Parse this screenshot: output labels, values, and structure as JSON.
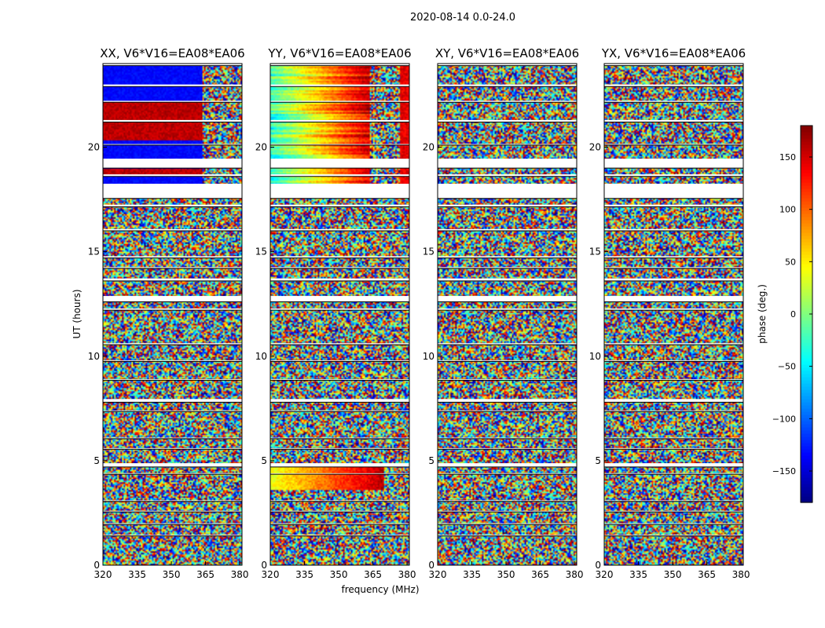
{
  "chart_data": {
    "type": "heatmap",
    "title": "2020-08-14 0.0-24.0",
    "xlabel": "frequency (MHz)",
    "ylabel": "UT (hours)",
    "xlim": [
      320,
      381
    ],
    "ylim": [
      0,
      24
    ],
    "x_ticks": [
      "320",
      "335",
      "350",
      "365",
      "380"
    ],
    "y_ticks": [
      "0",
      "5",
      "10",
      "15",
      "20"
    ],
    "panels": [
      {
        "title": "XX, V6*V16=EA08*EA06",
        "polarization": "XX"
      },
      {
        "title": "YY, V6*V16=EA08*EA06",
        "polarization": "YY"
      },
      {
        "title": "XY, V6*V16=EA08*EA06",
        "polarization": "XY"
      },
      {
        "title": "YX, V6*V16=EA08*EA06",
        "polarization": "YX"
      }
    ],
    "colorbar": {
      "label": "phase (deg.)",
      "range": [
        -180,
        180
      ],
      "ticks": [
        "150",
        "100",
        "50",
        "0",
        "−50",
        "−100",
        "−150"
      ],
      "tick_values": [
        150,
        100,
        50,
        0,
        -50,
        -100,
        -150
      ],
      "colormap": "jet"
    },
    "flagged_ut_bands": [
      [
        23.9,
        24.0
      ],
      [
        22.9,
        23.0
      ],
      [
        22.15,
        22.22
      ],
      [
        21.2,
        21.3
      ],
      [
        20.1,
        20.15
      ],
      [
        19.0,
        19.45
      ],
      [
        18.6,
        18.7
      ],
      [
        17.55,
        18.25
      ],
      [
        17.15,
        17.25
      ],
      [
        16.0,
        16.08
      ],
      [
        14.7,
        14.78
      ],
      [
        14.2,
        14.26
      ],
      [
        13.6,
        13.72
      ],
      [
        12.6,
        12.88
      ],
      [
        12.2,
        12.28
      ],
      [
        10.55,
        10.62
      ],
      [
        9.75,
        9.8
      ],
      [
        8.85,
        8.9
      ],
      [
        7.8,
        7.95
      ],
      [
        7.35,
        7.4
      ],
      [
        6.05,
        6.1
      ],
      [
        5.55,
        5.6
      ],
      [
        4.7,
        4.88
      ],
      [
        4.35,
        4.4
      ],
      [
        3.05,
        3.1
      ],
      [
        2.55,
        2.6
      ],
      [
        1.95,
        2.0
      ],
      [
        1.4,
        1.45
      ]
    ],
    "coherent_ut_ranges": [
      {
        "from": 18.25,
        "to": 24.0,
        "freq_max": 364,
        "panels": [
          "XX",
          "YY"
        ]
      },
      {
        "from": 3.6,
        "to": 4.7,
        "freq_max": 370,
        "panels": [
          "YY"
        ]
      }
    ]
  }
}
